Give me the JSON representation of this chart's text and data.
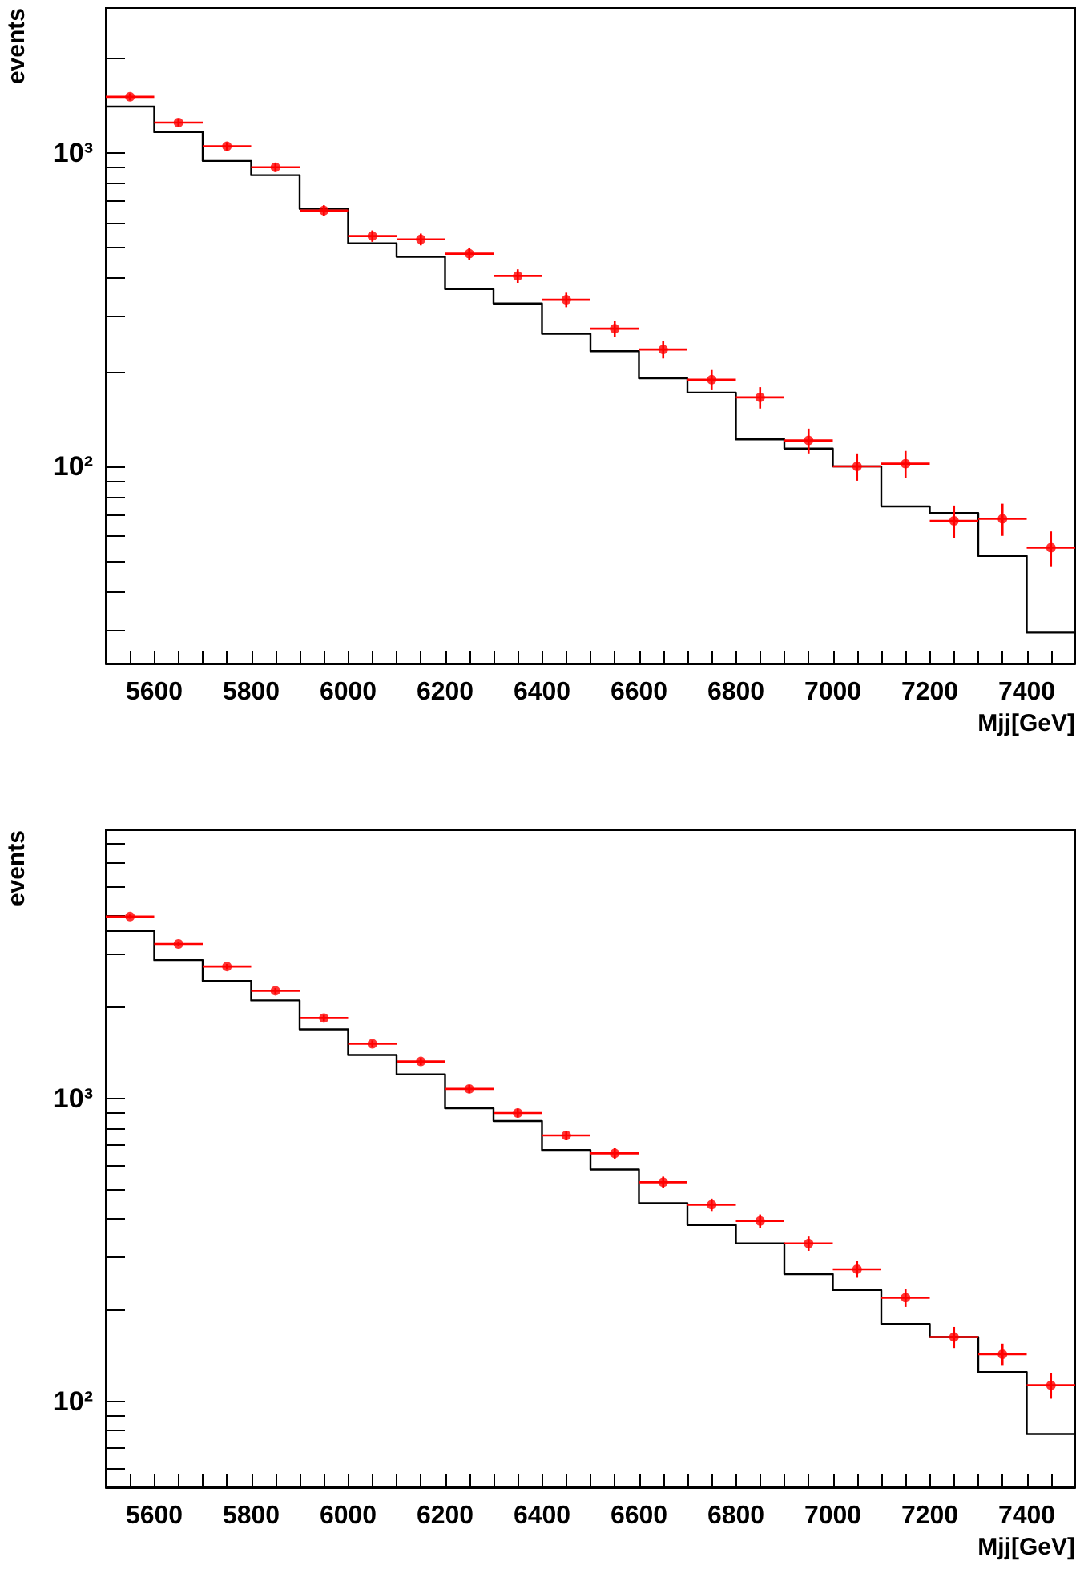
{
  "chart_data": [
    {
      "type": "histogram",
      "xlabel": "Mjj[GeV]",
      "ylabel": "events",
      "log": "y",
      "grid": false,
      "marker": "circle",
      "line_style": "solid",
      "xlim": [
        5500,
        7500
      ],
      "ylim": [
        23.5,
        2900
      ],
      "xticks": [
        {
          "value": 5550,
          "label": null
        },
        5600,
        {
          "value": 5650,
          "label": null
        },
        {
          "value": 5700,
          "label": null
        },
        {
          "value": 5750,
          "label": null
        },
        5800,
        {
          "value": 5850,
          "label": null
        },
        {
          "value": 5900,
          "label": null
        },
        {
          "value": 5950,
          "label": null
        },
        6000,
        {
          "value": 6050,
          "label": null
        },
        {
          "value": 6100,
          "label": null
        },
        {
          "value": 6150,
          "label": null
        },
        6200,
        {
          "value": 6250,
          "label": null
        },
        {
          "value": 6300,
          "label": null
        },
        {
          "value": 6350,
          "label": null
        },
        6400,
        {
          "value": 6450,
          "label": null
        },
        {
          "value": 6500,
          "label": null
        },
        {
          "value": 6550,
          "label": null
        },
        6600,
        {
          "value": 6650,
          "label": null
        },
        {
          "value": 6700,
          "label": null
        },
        {
          "value": 6750,
          "label": null
        },
        6800,
        {
          "value": 6850,
          "label": null
        },
        {
          "value": 6900,
          "label": null
        },
        {
          "value": 6950,
          "label": null
        },
        7000,
        {
          "value": 7050,
          "label": null
        },
        {
          "value": 7100,
          "label": null
        },
        {
          "value": 7150,
          "label": null
        },
        7200,
        {
          "value": 7250,
          "label": null
        },
        {
          "value": 7300,
          "label": null
        },
        {
          "value": 7350,
          "label": null
        },
        7400,
        {
          "value": 7450,
          "label": null
        }
      ],
      "yticks": [
        {
          "value": 30,
          "label": null
        },
        {
          "value": 40,
          "label": null
        },
        {
          "value": 50,
          "label": null
        },
        {
          "value": 60,
          "label": null
        },
        {
          "value": 70,
          "label": null
        },
        {
          "value": 80,
          "label": null
        },
        {
          "value": 90,
          "label": null
        },
        {
          "value": 100,
          "label": "10²"
        },
        {
          "value": 200,
          "label": null
        },
        {
          "value": 300,
          "label": null
        },
        {
          "value": 400,
          "label": null
        },
        {
          "value": 500,
          "label": null
        },
        {
          "value": 600,
          "label": null
        },
        {
          "value": 700,
          "label": null
        },
        {
          "value": 800,
          "label": null
        },
        {
          "value": 900,
          "label": null
        },
        {
          "value": 1000,
          "label": "10³"
        },
        {
          "value": 2000,
          "label": null
        }
      ],
      "series": [
        {
          "color": "#000000",
          "bins": [
            5500,
            5600,
            5700,
            5800,
            5900,
            6000,
            6100,
            6200,
            6300,
            6400,
            6500,
            6600,
            6700,
            6800,
            6900,
            7000,
            7100,
            7200,
            7300,
            7400,
            7500
          ],
          "values": [
            1406,
            1165,
            943,
            849,
            663,
            515,
            466,
            368,
            331,
            265,
            233,
            191,
            172,
            122,
            114,
            100,
            74.5,
            71,
            51.8,
            29.5
          ]
        },
        {
          "type": "scatter",
          "color": "#ff0000",
          "x": [
            5550,
            5650,
            5750,
            5850,
            5950,
            6050,
            6150,
            6250,
            6350,
            6450,
            6550,
            6650,
            6750,
            6850,
            6950,
            7050,
            7150,
            7250,
            7350,
            7450
          ],
          "values": [
            1510,
            1250,
            1050,
            900,
            655,
            543,
            530,
            477,
            405,
            340,
            275,
            236,
            189,
            166,
            121,
            100,
            102,
            67,
            68,
            55
          ],
          "errors": [
            39,
            35,
            32,
            30,
            26,
            23,
            23,
            22,
            20,
            18,
            17,
            15,
            14,
            13,
            11,
            10,
            10,
            8,
            8,
            7
          ],
          "xerrors": [
            50,
            50,
            50,
            50,
            50,
            50,
            50,
            50,
            50,
            50,
            50,
            50,
            50,
            50,
            50,
            50,
            50,
            50,
            50,
            50
          ]
        }
      ]
    },
    {
      "type": "histogram",
      "xlabel": "Mjj[GeV]",
      "ylabel": "events",
      "log": "y",
      "grid": false,
      "marker": "circle",
      "line_style": "solid",
      "xlim": [
        5500,
        7500
      ],
      "ylim": [
        52,
        7700
      ],
      "xticks": [
        {
          "value": 5550,
          "label": null
        },
        5600,
        {
          "value": 5650,
          "label": null
        },
        {
          "value": 5700,
          "label": null
        },
        {
          "value": 5750,
          "label": null
        },
        5800,
        {
          "value": 5850,
          "label": null
        },
        {
          "value": 5900,
          "label": null
        },
        {
          "value": 5950,
          "label": null
        },
        6000,
        {
          "value": 6050,
          "label": null
        },
        {
          "value": 6100,
          "label": null
        },
        {
          "value": 6150,
          "label": null
        },
        6200,
        {
          "value": 6250,
          "label": null
        },
        {
          "value": 6300,
          "label": null
        },
        {
          "value": 6350,
          "label": null
        },
        6400,
        {
          "value": 6450,
          "label": null
        },
        {
          "value": 6500,
          "label": null
        },
        {
          "value": 6550,
          "label": null
        },
        6600,
        {
          "value": 6650,
          "label": null
        },
        {
          "value": 6700,
          "label": null
        },
        {
          "value": 6750,
          "label": null
        },
        6800,
        {
          "value": 6850,
          "label": null
        },
        {
          "value": 6900,
          "label": null
        },
        {
          "value": 6950,
          "label": null
        },
        7000,
        {
          "value": 7050,
          "label": null
        },
        {
          "value": 7100,
          "label": null
        },
        {
          "value": 7150,
          "label": null
        },
        7200,
        {
          "value": 7250,
          "label": null
        },
        {
          "value": 7300,
          "label": null
        },
        {
          "value": 7350,
          "label": null
        },
        7400,
        {
          "value": 7450,
          "label": null
        }
      ],
      "yticks": [
        {
          "value": 60,
          "label": null
        },
        {
          "value": 70,
          "label": null
        },
        {
          "value": 80,
          "label": null
        },
        {
          "value": 90,
          "label": null
        },
        {
          "value": 100,
          "label": "10²"
        },
        {
          "value": 200,
          "label": null
        },
        {
          "value": 300,
          "label": null
        },
        {
          "value": 400,
          "label": null
        },
        {
          "value": 500,
          "label": null
        },
        {
          "value": 600,
          "label": null
        },
        {
          "value": 700,
          "label": null
        },
        {
          "value": 800,
          "label": null
        },
        {
          "value": 900,
          "label": null
        },
        {
          "value": 1000,
          "label": "10³"
        },
        {
          "value": 2000,
          "label": null
        },
        {
          "value": 3000,
          "label": null
        },
        {
          "value": 4000,
          "label": null
        },
        {
          "value": 5000,
          "label": null
        },
        {
          "value": 6000,
          "label": null
        },
        {
          "value": 7000,
          "label": null
        }
      ],
      "series": [
        {
          "color": "#000000",
          "bins": [
            5500,
            5600,
            5700,
            5800,
            5900,
            6000,
            6100,
            6200,
            6300,
            6400,
            6500,
            6600,
            6700,
            6800,
            6900,
            7000,
            7100,
            7200,
            7300,
            7400,
            7500
          ],
          "values": [
            3575,
            2866,
            2445,
            2110,
            1693,
            1393,
            1202,
            929,
            843,
            676,
            583,
            451,
            382,
            332,
            263,
            233,
            180,
            163,
            125,
            78
          ]
        },
        {
          "type": "scatter",
          "color": "#ff0000",
          "x": [
            5550,
            5650,
            5750,
            5850,
            5950,
            6050,
            6150,
            6250,
            6350,
            6450,
            6550,
            6650,
            6750,
            6850,
            6950,
            7050,
            7150,
            7250,
            7350,
            7450
          ],
          "values": [
            3990,
            3240,
            2730,
            2270,
            1845,
            1517,
            1326,
            1076,
            896,
            755,
            659,
            529,
            446,
            394,
            332,
            273,
            220,
            163,
            143,
            113
          ],
          "errors": [
            63,
            57,
            52,
            48,
            43,
            39,
            36,
            33,
            30,
            27,
            26,
            23,
            21,
            20,
            18,
            17,
            15,
            13,
            12,
            11
          ],
          "xerrors": [
            50,
            50,
            50,
            50,
            50,
            50,
            50,
            50,
            50,
            50,
            50,
            50,
            50,
            50,
            50,
            50,
            50,
            50,
            50,
            50
          ]
        }
      ]
    }
  ]
}
